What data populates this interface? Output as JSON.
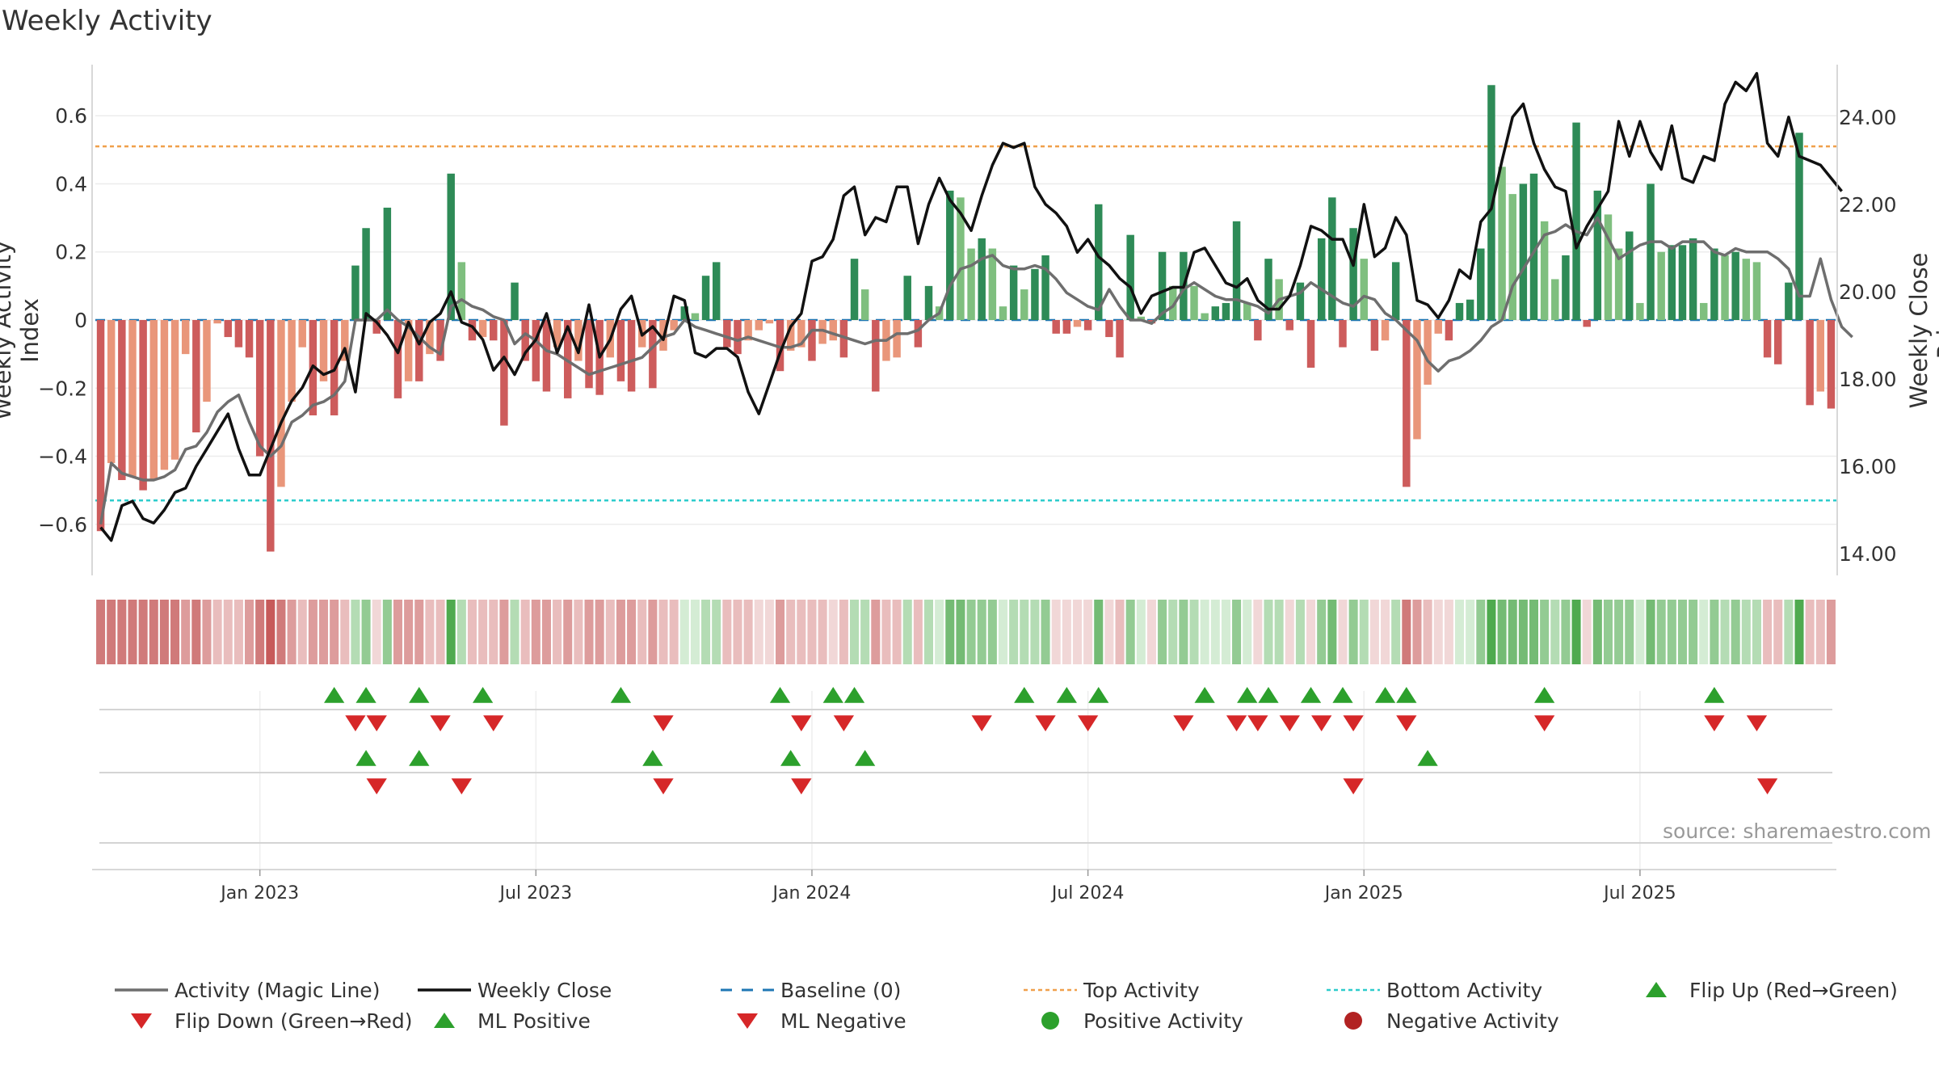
{
  "chart_data": {
    "type": "bar",
    "title": "Weekly Activity",
    "ylabel_left": "Weekly Activity Index",
    "ylabel_right": "Weekly Close Price",
    "ylim_left": [
      -0.75,
      0.75
    ],
    "ylim_right": [
      13.5,
      25.2
    ],
    "yticks_left": [
      {
        "value": 0.6,
        "label": "0.6"
      },
      {
        "value": 0.4,
        "label": "0.4"
      },
      {
        "value": 0.2,
        "label": "0.2"
      },
      {
        "value": 0.0,
        "label": "0"
      },
      {
        "value": -0.2,
        "label": "−0.2"
      },
      {
        "value": -0.4,
        "label": "−0.4"
      },
      {
        "value": -0.6,
        "label": "−0.6"
      }
    ],
    "yticks_right": [
      {
        "value": 24.0,
        "label": "24.00"
      },
      {
        "value": 22.0,
        "label": "22.00"
      },
      {
        "value": 20.0,
        "label": "20.00"
      },
      {
        "value": 18.0,
        "label": "18.00"
      },
      {
        "value": 16.0,
        "label": "16.00"
      },
      {
        "value": 14.0,
        "label": "14.00"
      }
    ],
    "xticks": [
      {
        "index": 15,
        "label": "Jan 2023"
      },
      {
        "index": 41,
        "label": "Jul 2023"
      },
      {
        "index": 67,
        "label": "Jan 2024"
      },
      {
        "index": 93,
        "label": "Jul 2024"
      },
      {
        "index": 119,
        "label": "Jan 2025"
      },
      {
        "index": 145,
        "label": "Jul 2025"
      }
    ],
    "top_activity": 0.51,
    "bottom_activity": -0.53,
    "baseline": 0,
    "activity": [
      -0.62,
      -0.42,
      -0.47,
      -0.46,
      -0.5,
      -0.47,
      -0.44,
      -0.41,
      -0.1,
      -0.33,
      -0.24,
      -0.01,
      -0.05,
      -0.08,
      -0.11,
      -0.4,
      -0.68,
      -0.49,
      -0.24,
      -0.08,
      -0.28,
      -0.18,
      -0.28,
      -0.12,
      0.16,
      0.27,
      -0.04,
      0.33,
      -0.23,
      -0.18,
      -0.18,
      -0.1,
      -0.12,
      0.43,
      0.17,
      -0.06,
      -0.05,
      -0.06,
      -0.31,
      0.11,
      -0.12,
      -0.18,
      -0.21,
      -0.08,
      -0.23,
      -0.12,
      -0.2,
      -0.22,
      -0.11,
      -0.18,
      -0.21,
      -0.08,
      -0.2,
      -0.09,
      -0.03,
      0.04,
      0.02,
      0.13,
      0.17,
      -0.08,
      -0.1,
      -0.06,
      -0.03,
      -0.01,
      -0.15,
      -0.09,
      -0.08,
      -0.12,
      -0.07,
      -0.06,
      -0.11,
      0.18,
      0.09,
      -0.21,
      -0.12,
      -0.11,
      0.13,
      -0.08,
      0.1,
      0.04,
      0.38,
      0.36,
      0.21,
      0.24,
      0.21,
      0.04,
      0.16,
      0.09,
      0.15,
      0.19,
      -0.04,
      -0.04,
      -0.02,
      -0.03,
      0.34,
      -0.05,
      -0.11,
      0.25,
      0.01,
      -0.01,
      0.2,
      0.1,
      0.2,
      0.1,
      0.02,
      0.04,
      0.05,
      0.29,
      0.05,
      -0.06,
      0.18,
      0.12,
      -0.03,
      0.11,
      -0.14,
      0.24,
      0.36,
      -0.08,
      0.27,
      0.18,
      -0.09,
      -0.06,
      0.17,
      -0.49,
      -0.35,
      -0.19,
      -0.04,
      -0.06,
      0.05,
      0.06,
      0.21,
      0.69,
      0.45,
      0.37,
      0.4,
      0.43,
      0.29,
      0.12,
      0.19,
      0.58,
      -0.02,
      0.38,
      0.31,
      0.21,
      0.26,
      0.05,
      0.4,
      0.2,
      0.22,
      0.22,
      0.24,
      0.05,
      0.21,
      0.19,
      0.2,
      0.18,
      0.17,
      -0.11,
      -0.13,
      0.11,
      0.55,
      -0.25,
      -0.21,
      -0.26
    ],
    "magic_line": [
      -0.6,
      -0.42,
      -0.45,
      -0.46,
      -0.47,
      -0.47,
      -0.46,
      -0.44,
      -0.38,
      -0.37,
      -0.33,
      -0.27,
      -0.24,
      -0.22,
      -0.3,
      -0.37,
      -0.4,
      -0.37,
      -0.3,
      -0.28,
      -0.25,
      -0.24,
      -0.22,
      -0.18,
      0.0,
      0.0,
      0.0,
      0.03,
      0.0,
      -0.02,
      -0.05,
      -0.08,
      -0.1,
      0.04,
      0.06,
      0.04,
      0.03,
      0.01,
      0.0,
      -0.07,
      -0.04,
      -0.06,
      -0.09,
      -0.1,
      -0.12,
      -0.14,
      -0.16,
      -0.15,
      -0.14,
      -0.13,
      -0.12,
      -0.11,
      -0.08,
      -0.05,
      -0.04,
      0.0,
      -0.02,
      -0.03,
      -0.04,
      -0.05,
      -0.06,
      -0.05,
      -0.06,
      -0.07,
      -0.08,
      -0.08,
      -0.07,
      -0.03,
      -0.03,
      -0.04,
      -0.05,
      -0.06,
      -0.07,
      -0.06,
      -0.06,
      -0.04,
      -0.04,
      -0.03,
      0.0,
      0.02,
      0.1,
      0.15,
      0.16,
      0.18,
      0.19,
      0.16,
      0.15,
      0.15,
      0.16,
      0.15,
      0.12,
      0.08,
      0.06,
      0.04,
      0.03,
      0.09,
      0.04,
      0.0,
      0.0,
      -0.01,
      0.02,
      0.04,
      0.09,
      0.11,
      0.09,
      0.07,
      0.06,
      0.06,
      0.05,
      0.04,
      0.02,
      0.06,
      0.07,
      0.08,
      0.11,
      0.09,
      0.07,
      0.05,
      0.04,
      0.07,
      0.06,
      0.02,
      0.0,
      -0.03,
      -0.06,
      -0.12,
      -0.15,
      -0.12,
      -0.11,
      -0.09,
      -0.06,
      -0.02,
      0.0,
      0.1,
      0.15,
      0.2,
      0.25,
      0.26,
      0.28,
      0.26,
      0.25,
      0.3,
      0.24,
      0.18,
      0.2,
      0.22,
      0.23,
      0.23,
      0.21,
      0.23,
      0.23,
      0.23,
      0.2,
      0.19,
      0.21,
      0.2,
      0.2,
      0.2,
      0.18,
      0.15,
      0.07,
      0.07,
      0.18,
      0.06,
      -0.02,
      -0.05
    ],
    "weekly_close": [
      14.6,
      14.3,
      15.1,
      15.2,
      14.8,
      14.7,
      15.0,
      15.4,
      15.5,
      16.0,
      16.4,
      16.8,
      17.2,
      16.4,
      15.8,
      15.8,
      16.4,
      17.0,
      17.5,
      17.8,
      18.3,
      18.1,
      18.2,
      18.7,
      17.7,
      19.5,
      19.3,
      19.0,
      18.6,
      19.3,
      18.8,
      19.3,
      19.5,
      20.0,
      19.3,
      19.2,
      18.9,
      18.2,
      18.5,
      18.1,
      18.6,
      18.9,
      19.5,
      18.6,
      19.2,
      18.6,
      19.7,
      18.5,
      18.9,
      19.6,
      19.9,
      19.0,
      19.2,
      18.9,
      19.9,
      19.8,
      18.6,
      18.5,
      18.7,
      18.7,
      18.5,
      17.7,
      17.2,
      17.9,
      18.6,
      19.2,
      19.5,
      20.7,
      20.8,
      21.2,
      22.2,
      22.4,
      21.3,
      21.7,
      21.6,
      22.4,
      22.4,
      21.1,
      22.0,
      22.6,
      22.1,
      21.8,
      21.4,
      22.2,
      22.9,
      23.4,
      23.3,
      23.4,
      22.4,
      22.0,
      21.8,
      21.5,
      20.9,
      21.2,
      20.8,
      20.6,
      20.3,
      20.1,
      19.5,
      19.9,
      20.0,
      20.1,
      20.1,
      20.9,
      21.0,
      20.6,
      20.2,
      20.1,
      20.3,
      19.8,
      19.6,
      19.6,
      19.9,
      20.6,
      21.5,
      21.4,
      21.2,
      21.2,
      20.6,
      22.0,
      20.8,
      21.0,
      21.7,
      21.3,
      19.8,
      19.7,
      19.4,
      19.8,
      20.5,
      20.3,
      21.6,
      21.9,
      23.0,
      24.0,
      24.3,
      23.4,
      22.8,
      22.4,
      22.3,
      21.0,
      21.5,
      21.9,
      22.3,
      23.9,
      23.1,
      23.9,
      23.2,
      22.8,
      23.8,
      22.6,
      22.5,
      23.1,
      23.0,
      24.3,
      24.8,
      24.6,
      25.0,
      23.4,
      23.1,
      24.0,
      23.1,
      23.0,
      22.9,
      22.6,
      22.3
    ],
    "strip_levels": [
      -5,
      -5,
      -5,
      -5,
      -5,
      -5,
      -5,
      -5,
      -4,
      -5,
      -4,
      -3,
      -3,
      -3,
      -4,
      -5,
      -6,
      -5,
      -4,
      -3,
      -4,
      -4,
      -4,
      -3,
      2,
      3,
      -2,
      3,
      -4,
      -4,
      -4,
      -3,
      -3,
      5,
      2,
      -3,
      -3,
      -3,
      -4,
      2,
      -3,
      -4,
      -4,
      -3,
      -4,
      -3,
      -4,
      -4,
      -3,
      -4,
      -4,
      -3,
      -4,
      -3,
      -3,
      1,
      1,
      2,
      2,
      -3,
      -3,
      -3,
      -2,
      -2,
      -4,
      -3,
      -3,
      -3,
      -3,
      -2,
      -3,
      2,
      2,
      -4,
      -3,
      -3,
      2,
      -3,
      2,
      1,
      4,
      4,
      3,
      3,
      3,
      1,
      2,
      2,
      2,
      3,
      -2,
      -2,
      -2,
      -2,
      4,
      -2,
      -3,
      3,
      1,
      -2,
      3,
      2,
      3,
      2,
      1,
      1,
      1,
      3,
      1,
      -2,
      2,
      2,
      -2,
      2,
      -2,
      3,
      4,
      -2,
      3,
      2,
      -2,
      -2,
      2,
      -5,
      -4,
      -3,
      -2,
      -2,
      1,
      1,
      3,
      5,
      4,
      4,
      4,
      4,
      3,
      2,
      3,
      5,
      -2,
      4,
      3,
      3,
      3,
      1,
      4,
      3,
      3,
      3,
      3,
      1,
      3,
      2,
      3,
      2,
      2,
      -3,
      -3,
      2,
      5,
      -3,
      -3,
      -4
    ],
    "flip_up": [
      22,
      25,
      30,
      36,
      49,
      64,
      69,
      71,
      87,
      91,
      94,
      104,
      108,
      110,
      114,
      117,
      121,
      123,
      136,
      152
    ],
    "flip_down": [
      24,
      26,
      32,
      37,
      53,
      66,
      70,
      83,
      89,
      93,
      102,
      107,
      109,
      112,
      115,
      118,
      123,
      136,
      152,
      156
    ],
    "ml_positive": [
      25,
      30,
      52,
      65,
      72,
      125
    ],
    "ml_negative": [
      26,
      34,
      53,
      66,
      118,
      157
    ],
    "legend": [
      {
        "label": "Activity (Magic Line)",
        "symbol": "line-gray"
      },
      {
        "label": "Weekly Close",
        "symbol": "line-black"
      },
      {
        "label": "Baseline (0)",
        "symbol": "dash-blue"
      },
      {
        "label": "Top Activity",
        "symbol": "dot-orange"
      },
      {
        "label": "Bottom Activity",
        "symbol": "dot-teal"
      },
      {
        "label": "Flip Up (Red→Green)",
        "symbol": "tri-up-green"
      },
      {
        "label": "Flip Down (Green→Red)",
        "symbol": "tri-down-red"
      },
      {
        "label": "ML Positive",
        "symbol": "tri-up-green"
      },
      {
        "label": "ML Negative",
        "symbol": "tri-down-red"
      },
      {
        "label": "Positive Activity",
        "symbol": "circle-green"
      },
      {
        "label": "Negative Activity",
        "symbol": "circle-red"
      }
    ],
    "source": "source: sharemaestro.com",
    "colors": {
      "pos_strong": "#2e8b57",
      "pos_weak": "#7fbf7f",
      "neg_strong": "#cd5c5c",
      "neg_weak": "#e9967a",
      "magic_line": "#6e6e6e",
      "close": "#111111",
      "baseline": "#1f77b4",
      "top": "#f0a04b",
      "bottom": "#2ecccc",
      "marker_green": "#2ca02c",
      "marker_red": "#d62728"
    }
  }
}
